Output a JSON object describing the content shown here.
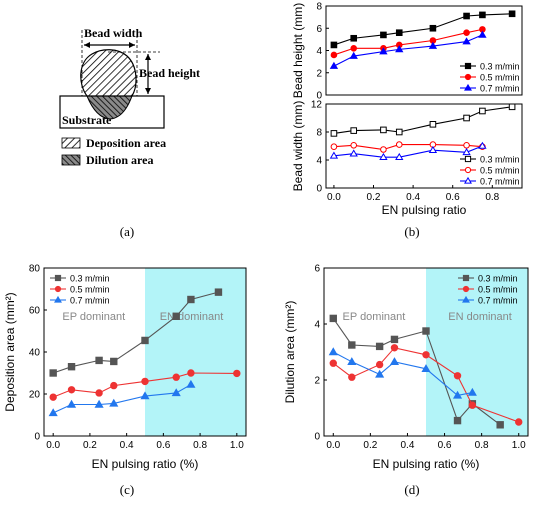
{
  "panel_labels": {
    "a": "(a)",
    "b": "(b)",
    "c": "(c)",
    "d": "(d)"
  },
  "schematic": {
    "bead_width_label": "Bead width",
    "bead_height_label": "Bead height",
    "substrate_label": "Substrate",
    "legend": [
      "Deposition area",
      "Dilution area"
    ]
  },
  "chart_data": [
    {
      "id": "b_top",
      "type": "line",
      "ylabel": "Bead height (mm)",
      "xlabel": "",
      "xlim": [
        -0.04,
        0.95
      ],
      "ylim": [
        0,
        8
      ],
      "yticks": [
        0,
        2,
        4,
        6,
        8
      ],
      "legend_position": "bottom-right",
      "series": [
        {
          "name": "0.3 m/min",
          "color": "#000000",
          "marker": "square",
          "filled": true,
          "x": [
            0,
            0.1,
            0.25,
            0.33,
            0.5,
            0.67,
            0.75,
            0.9
          ],
          "y": [
            4.5,
            5.1,
            5.4,
            5.6,
            6.0,
            7.1,
            7.2,
            7.3
          ]
        },
        {
          "name": "0.5 m/min",
          "color": "#ff0000",
          "marker": "circle",
          "filled": true,
          "x": [
            0,
            0.1,
            0.25,
            0.33,
            0.5,
            0.67,
            0.75
          ],
          "y": [
            3.6,
            4.2,
            4.2,
            4.5,
            4.9,
            5.6,
            5.9
          ]
        },
        {
          "name": "0.7 m/min",
          "color": "#0000ff",
          "marker": "triangle",
          "filled": true,
          "x": [
            0,
            0.1,
            0.25,
            0.33,
            0.5,
            0.67,
            0.75
          ],
          "y": [
            2.6,
            3.5,
            3.9,
            4.1,
            4.4,
            4.8,
            5.4
          ]
        }
      ]
    },
    {
      "id": "b_bottom",
      "type": "line",
      "ylabel": "Bead width (mm)",
      "xlabel": "EN pulsing ratio",
      "xlim": [
        -0.04,
        0.95
      ],
      "ylim": [
        0,
        12
      ],
      "yticks": [
        0,
        4,
        8,
        12
      ],
      "xticks": [
        0.0,
        0.2,
        0.4,
        0.6,
        0.8
      ],
      "xticklabels": [
        "0.0",
        "0.2",
        "0.4",
        "0.6",
        "0.8"
      ],
      "legend_position": "bottom-right",
      "series": [
        {
          "name": "0.3 m/min",
          "color": "#000000",
          "marker": "square",
          "filled": false,
          "x": [
            0,
            0.1,
            0.25,
            0.33,
            0.5,
            0.67,
            0.75,
            0.9
          ],
          "y": [
            7.8,
            8.2,
            8.3,
            8.0,
            9.1,
            10.0,
            11.0,
            11.6
          ]
        },
        {
          "name": "0.5 m/min",
          "color": "#ff0000",
          "marker": "circle",
          "filled": false,
          "x": [
            0,
            0.1,
            0.25,
            0.33,
            0.5,
            0.67,
            0.75
          ],
          "y": [
            5.9,
            6.1,
            5.5,
            6.2,
            6.2,
            6.1,
            5.9
          ]
        },
        {
          "name": "0.7 m/min",
          "color": "#0000ff",
          "marker": "triangle",
          "filled": false,
          "x": [
            0,
            0.1,
            0.25,
            0.33,
            0.5,
            0.67,
            0.75
          ],
          "y": [
            4.6,
            4.9,
            4.4,
            4.4,
            5.4,
            5.1,
            6.0
          ]
        }
      ]
    },
    {
      "id": "c",
      "type": "line",
      "ylabel": "Deposition area (mm²)",
      "xlabel": "EN pulsing ratio (%)",
      "xlim": [
        -0.05,
        1.05
      ],
      "ylim": [
        0,
        80
      ],
      "yticks": [
        0,
        20,
        40,
        60,
        80
      ],
      "xticks": [
        0.0,
        0.2,
        0.4,
        0.6,
        0.8,
        1.0
      ],
      "xticklabels": [
        "0.0",
        "0.2",
        "0.4",
        "0.6",
        "0.8",
        "1.0"
      ],
      "legend_position": "top-left",
      "shaded_region": {
        "from": 0.5,
        "to": 1.05,
        "color": "#b3f4f8"
      },
      "annotations": [
        "EP dominant",
        "EN dominant"
      ],
      "series": [
        {
          "name": "0.3 m/min",
          "color": "#555555",
          "marker": "square",
          "x": [
            0,
            0.1,
            0.25,
            0.33,
            0.5,
            0.67,
            0.75,
            0.9
          ],
          "y": [
            30,
            33,
            36,
            35.5,
            45.5,
            57,
            65,
            68.5
          ]
        },
        {
          "name": "0.5 m/min",
          "color": "#ee3333",
          "marker": "circle",
          "x": [
            0,
            0.1,
            0.25,
            0.33,
            0.5,
            0.67,
            0.75,
            1.0
          ],
          "y": [
            18.5,
            22,
            20.5,
            24,
            26,
            28,
            30,
            29.8
          ]
        },
        {
          "name": "0.7 m/min",
          "color": "#2277ee",
          "marker": "triangle",
          "x": [
            0,
            0.1,
            0.25,
            0.33,
            0.5,
            0.67,
            0.75
          ],
          "y": [
            11,
            15,
            15,
            15.5,
            19,
            20.5,
            24.5
          ]
        }
      ]
    },
    {
      "id": "d",
      "type": "line",
      "ylabel": "Dilution area (mm²)",
      "xlabel": "EN pulsing ratio (%)",
      "xlim": [
        -0.05,
        1.05
      ],
      "ylim": [
        0,
        6
      ],
      "yticks": [
        0,
        2,
        4,
        6
      ],
      "xticks": [
        0.0,
        0.2,
        0.4,
        0.6,
        0.8,
        1.0
      ],
      "xticklabels": [
        "0.0",
        "0.2",
        "0.4",
        "0.6",
        "0.8",
        "1.0"
      ],
      "legend_position": "top-right",
      "shaded_region": {
        "from": 0.5,
        "to": 1.05,
        "color": "#b3f4f8"
      },
      "annotations": [
        "EP dominant",
        "EN dominant"
      ],
      "series": [
        {
          "name": "0.3 m/min",
          "color": "#555555",
          "marker": "square",
          "x": [
            0,
            0.1,
            0.25,
            0.33,
            0.5,
            0.67,
            0.75,
            0.9
          ],
          "y": [
            4.2,
            3.25,
            3.2,
            3.45,
            3.75,
            0.55,
            1.15,
            0.4
          ]
        },
        {
          "name": "0.5 m/min",
          "color": "#ee3333",
          "marker": "circle",
          "x": [
            0,
            0.1,
            0.25,
            0.33,
            0.5,
            0.67,
            0.75,
            1.0
          ],
          "y": [
            2.6,
            2.1,
            2.55,
            3.15,
            2.9,
            2.15,
            1.1,
            0.5
          ]
        },
        {
          "name": "0.7 m/min",
          "color": "#2277ee",
          "marker": "triangle",
          "x": [
            0,
            0.1,
            0.25,
            0.33,
            0.5,
            0.67,
            0.75
          ],
          "y": [
            3.0,
            2.65,
            2.2,
            2.65,
            2.4,
            1.45,
            1.55
          ]
        }
      ]
    }
  ]
}
